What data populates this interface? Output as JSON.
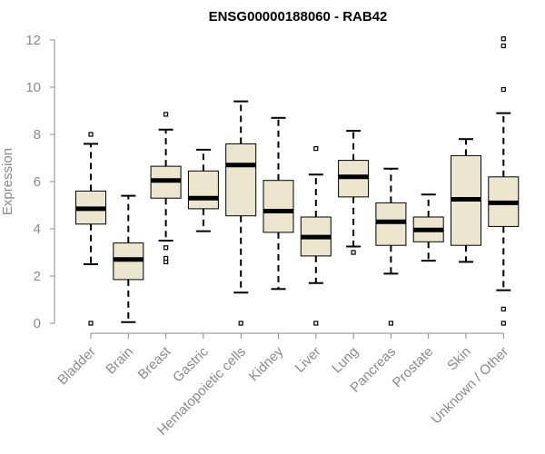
{
  "chart_data": {
    "type": "box",
    "title": "ENSG00000188060 - RAB42",
    "xlabel": "",
    "ylabel": "Expression",
    "ylim": [
      0,
      12
    ],
    "yticks": [
      "0",
      "2",
      "4",
      "6",
      "8",
      "10",
      "12"
    ],
    "grid": false,
    "colors": {
      "box_fill": "#ede6cf",
      "stroke": "#000000",
      "axis": "#8a8a8a"
    },
    "categories": [
      "Bladder",
      "Brain",
      "Breast",
      "Gastric",
      "Hematopoietic cells",
      "Kidney",
      "Liver",
      "Lung",
      "Pancreas",
      "Prostate",
      "Skin",
      "Unknown / Other"
    ],
    "boxes": [
      {
        "whisker_low": 2.5,
        "q1": 4.2,
        "median": 4.85,
        "q3": 5.6,
        "whisker_high": 7.6,
        "outliers": [
          0.0,
          8.0
        ]
      },
      {
        "whisker_low": 0.05,
        "q1": 1.85,
        "median": 2.7,
        "q3": 3.4,
        "whisker_high": 5.4,
        "outliers": []
      },
      {
        "whisker_low": 3.5,
        "q1": 5.3,
        "median": 6.05,
        "q3": 6.65,
        "whisker_high": 8.2,
        "outliers": [
          2.6,
          2.75,
          3.2,
          8.85
        ]
      },
      {
        "whisker_low": 3.9,
        "q1": 4.85,
        "median": 5.3,
        "q3": 6.45,
        "whisker_high": 7.35,
        "outliers": []
      },
      {
        "whisker_low": 1.3,
        "q1": 4.55,
        "median": 6.7,
        "q3": 7.6,
        "whisker_high": 9.4,
        "outliers": [
          0.0
        ]
      },
      {
        "whisker_low": 1.45,
        "q1": 3.85,
        "median": 4.75,
        "q3": 6.05,
        "whisker_high": 8.7,
        "outliers": []
      },
      {
        "whisker_low": 1.7,
        "q1": 2.85,
        "median": 3.65,
        "q3": 4.5,
        "whisker_high": 6.3,
        "outliers": [
          0.0,
          7.4
        ]
      },
      {
        "whisker_low": 3.25,
        "q1": 5.35,
        "median": 6.2,
        "q3": 6.9,
        "whisker_high": 8.15,
        "outliers": [
          3.0
        ]
      },
      {
        "whisker_low": 2.1,
        "q1": 3.3,
        "median": 4.3,
        "q3": 5.1,
        "whisker_high": 6.55,
        "outliers": [
          0.0
        ]
      },
      {
        "whisker_low": 2.65,
        "q1": 3.45,
        "median": 3.95,
        "q3": 4.5,
        "whisker_high": 5.45,
        "outliers": []
      },
      {
        "whisker_low": 2.6,
        "q1": 3.3,
        "median": 5.25,
        "q3": 7.1,
        "whisker_high": 7.8,
        "outliers": []
      },
      {
        "whisker_low": 1.4,
        "q1": 4.1,
        "median": 5.1,
        "q3": 6.2,
        "whisker_high": 8.9,
        "outliers": [
          0.0,
          0.6,
          9.9,
          11.75,
          12.05
        ]
      }
    ]
  }
}
